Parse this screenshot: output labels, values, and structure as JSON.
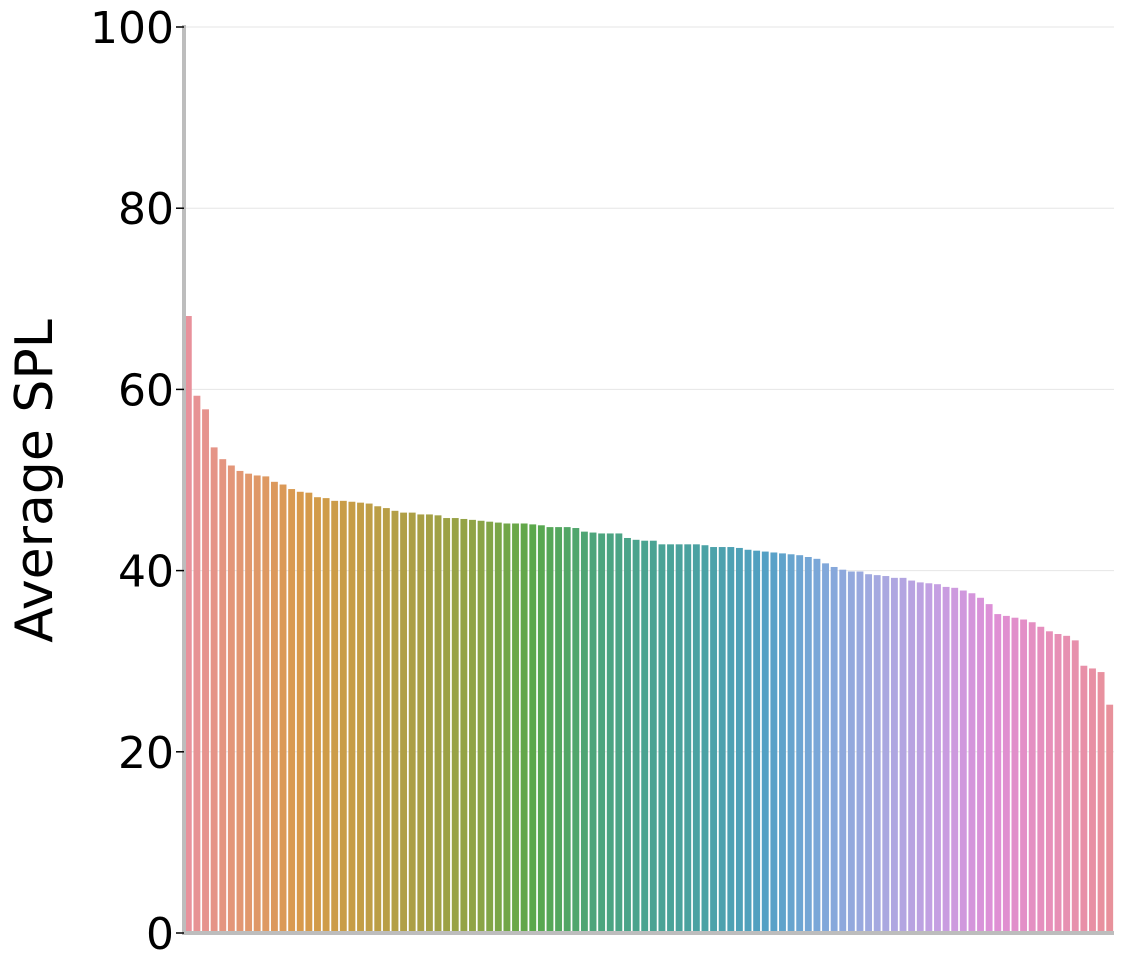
{
  "chart_data": {
    "type": "bar",
    "title": "",
    "xlabel": "",
    "ylabel": "Average SPL",
    "ylim": [
      0,
      100
    ],
    "yticks": [
      "0",
      "20",
      "40",
      "60",
      "80",
      "100"
    ],
    "ytick_values": [
      0,
      20,
      40,
      60,
      80,
      100
    ],
    "grid": "horizontal",
    "legend": "none",
    "x_tick_labels": "none",
    "values": [
      68.1,
      59.3,
      57.8,
      53.6,
      52.3,
      51.6,
      51.0,
      50.7,
      50.5,
      50.4,
      49.8,
      49.5,
      49.0,
      48.7,
      48.6,
      48.1,
      48.0,
      47.7,
      47.7,
      47.6,
      47.5,
      47.4,
      47.1,
      46.9,
      46.6,
      46.4,
      46.4,
      46.2,
      46.2,
      46.1,
      45.8,
      45.8,
      45.7,
      45.6,
      45.5,
      45.4,
      45.3,
      45.2,
      45.2,
      45.2,
      45.1,
      45.0,
      44.8,
      44.8,
      44.8,
      44.7,
      44.3,
      44.2,
      44.1,
      44.1,
      44.1,
      43.6,
      43.4,
      43.3,
      43.3,
      42.9,
      42.9,
      42.9,
      42.9,
      42.9,
      42.8,
      42.6,
      42.6,
      42.6,
      42.5,
      42.3,
      42.2,
      42.1,
      42.0,
      41.9,
      41.8,
      41.7,
      41.5,
      41.3,
      40.8,
      40.4,
      40.1,
      39.9,
      39.9,
      39.6,
      39.5,
      39.4,
      39.2,
      39.2,
      38.9,
      38.7,
      38.6,
      38.5,
      38.2,
      38.1,
      37.8,
      37.5,
      37.0,
      36.3,
      35.2,
      35.0,
      34.8,
      34.6,
      34.3,
      33.8,
      33.3,
      33.0,
      32.8,
      32.3,
      29.5,
      29.2,
      28.8,
      25.2
    ],
    "palette": [
      "#e8919b",
      "#e1986e",
      "#d79a4a",
      "#c39e47",
      "#a99f45",
      "#8ea446",
      "#5aa84b",
      "#4da57a",
      "#4aa392",
      "#4ba2a6",
      "#52a0c4",
      "#7ea8da",
      "#a7a9e0",
      "#c59fe2",
      "#de8fd6",
      "#e78fb8",
      "#e8919b"
    ]
  }
}
